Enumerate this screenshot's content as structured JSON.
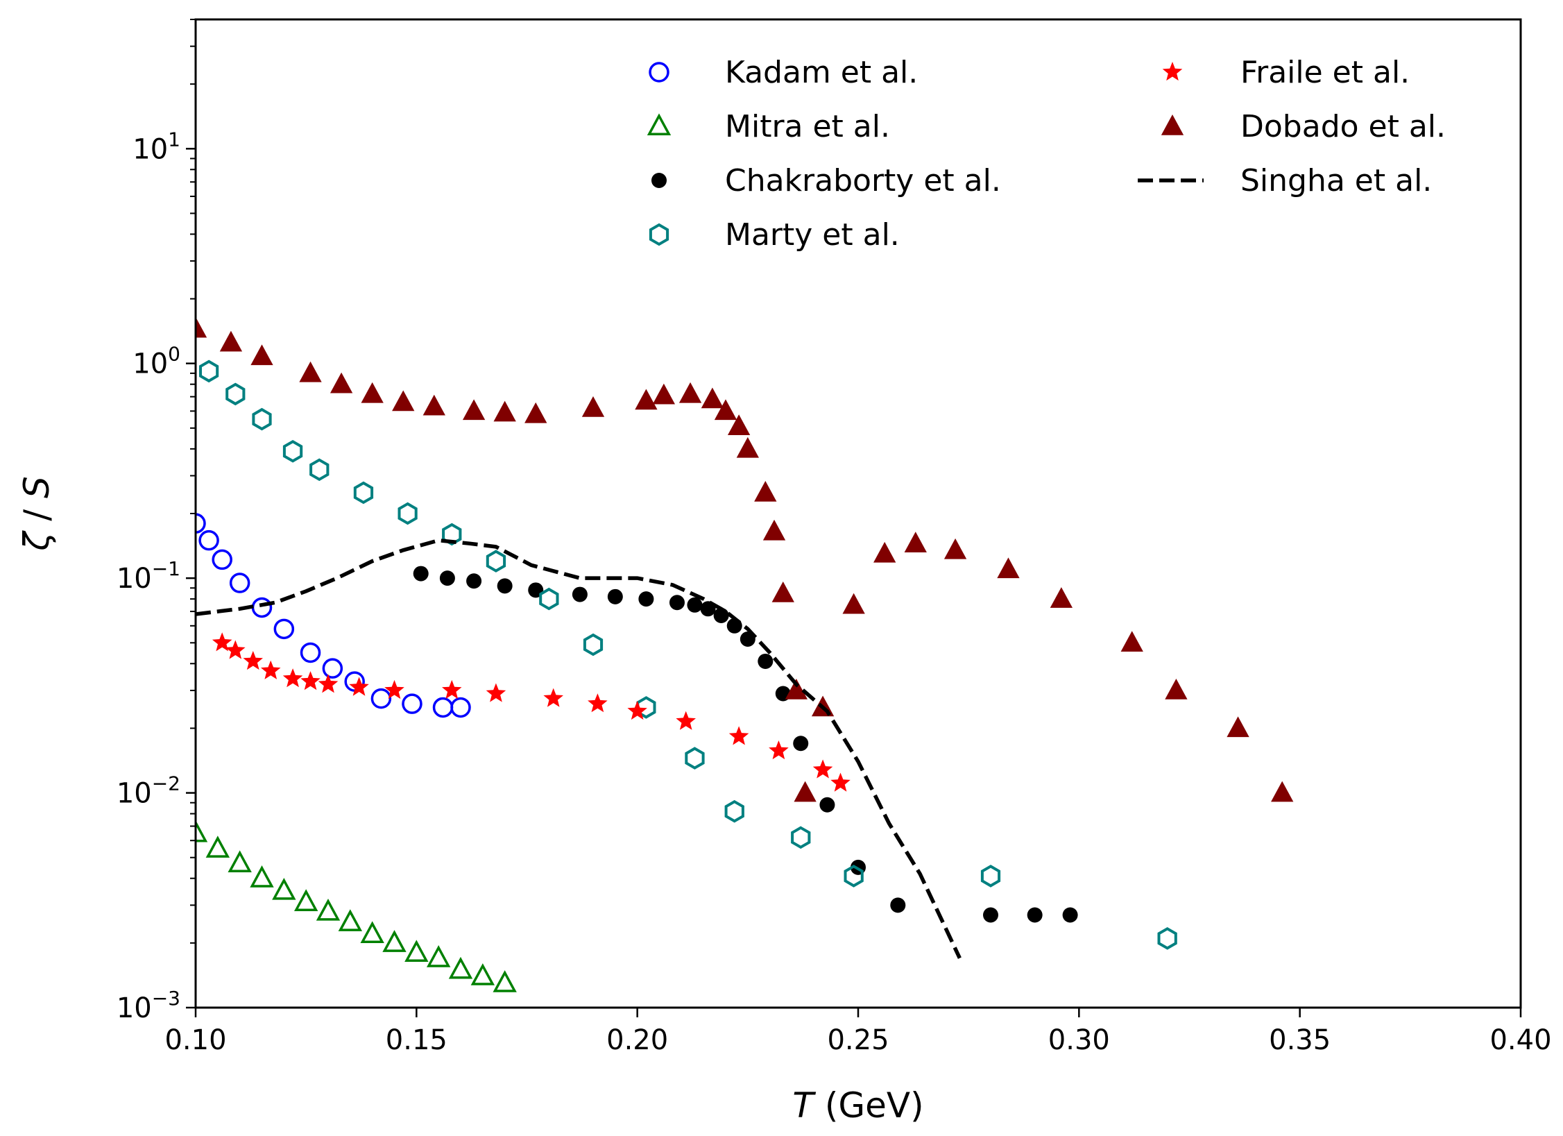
{
  "chart_data": {
    "type": "scatter",
    "xlabel": "T (GeV)",
    "ylabel": "ζ / S",
    "xlim": [
      0.1,
      0.4
    ],
    "ylim": [
      0.001,
      40
    ],
    "yscale": "log",
    "x_ticks": [
      {
        "value": 0.1,
        "label": "0.10"
      },
      {
        "value": 0.15,
        "label": "0.15"
      },
      {
        "value": 0.2,
        "label": "0.20"
      },
      {
        "value": 0.25,
        "label": "0.25"
      },
      {
        "value": 0.3,
        "label": "0.30"
      },
      {
        "value": 0.35,
        "label": "0.35"
      },
      {
        "value": 0.4,
        "label": "0.40"
      }
    ],
    "y_ticks": [
      {
        "value": 0.001,
        "base": "10",
        "exp": "−3"
      },
      {
        "value": 0.01,
        "base": "10",
        "exp": "−2"
      },
      {
        "value": 0.1,
        "base": "10",
        "exp": "−1"
      },
      {
        "value": 1,
        "base": "10",
        "exp": "0"
      },
      {
        "value": 10,
        "base": "10",
        "exp": "1"
      }
    ],
    "legend_position": "top-right",
    "series": [
      {
        "name": "Kadam et al.",
        "marker": "open-circle",
        "color": "#0000ff",
        "x": [
          0.1,
          0.103,
          0.106,
          0.11,
          0.115,
          0.12,
          0.126,
          0.131,
          0.136,
          0.142,
          0.149,
          0.156,
          0.16
        ],
        "y": [
          0.18,
          0.15,
          0.122,
          0.095,
          0.073,
          0.058,
          0.045,
          0.038,
          0.033,
          0.0275,
          0.026,
          0.025,
          0.025
        ]
      },
      {
        "name": "Mitra et al.",
        "marker": "open-triangle",
        "color": "#008000",
        "x": [
          0.1,
          0.105,
          0.11,
          0.115,
          0.12,
          0.125,
          0.13,
          0.135,
          0.14,
          0.145,
          0.15,
          0.155,
          0.16,
          0.165,
          0.17
        ],
        "y": [
          0.0065,
          0.0055,
          0.0047,
          0.004,
          0.0035,
          0.0031,
          0.0028,
          0.0025,
          0.0022,
          0.002,
          0.0018,
          0.0017,
          0.0015,
          0.0014,
          0.0013
        ]
      },
      {
        "name": "Chakraborty et al.",
        "marker": "filled-circle",
        "color": "#000000",
        "x": [
          0.151,
          0.157,
          0.163,
          0.17,
          0.177,
          0.187,
          0.195,
          0.202,
          0.209,
          0.213,
          0.216,
          0.219,
          0.222,
          0.225,
          0.229,
          0.233,
          0.237,
          0.243,
          0.25,
          0.259,
          0.28,
          0.29,
          0.298
        ],
        "y": [
          0.105,
          0.1,
          0.097,
          0.092,
          0.088,
          0.084,
          0.082,
          0.08,
          0.077,
          0.075,
          0.072,
          0.067,
          0.06,
          0.052,
          0.041,
          0.029,
          0.017,
          0.0088,
          0.0045,
          0.003,
          0.0027,
          0.0027,
          0.0027
        ]
      },
      {
        "name": "Marty et al.",
        "marker": "open-hexagon",
        "color": "#008080",
        "x": [
          0.103,
          0.109,
          0.115,
          0.122,
          0.128,
          0.138,
          0.148,
          0.158,
          0.168,
          0.18,
          0.19,
          0.202,
          0.213,
          0.222,
          0.237,
          0.249,
          0.28,
          0.32
        ],
        "y": [
          0.92,
          0.72,
          0.55,
          0.39,
          0.32,
          0.25,
          0.2,
          0.16,
          0.12,
          0.08,
          0.049,
          0.025,
          0.0145,
          0.0082,
          0.0062,
          0.0041,
          0.0041,
          0.0021
        ]
      },
      {
        "name": "Fraile et al.",
        "marker": "filled-star",
        "color": "#ff0000",
        "x": [
          0.106,
          0.109,
          0.113,
          0.117,
          0.122,
          0.126,
          0.13,
          0.137,
          0.145,
          0.158,
          0.168,
          0.181,
          0.191,
          0.2,
          0.211,
          0.223,
          0.232,
          0.242,
          0.246
        ],
        "y": [
          0.05,
          0.046,
          0.041,
          0.037,
          0.034,
          0.033,
          0.032,
          0.031,
          0.03,
          0.03,
          0.029,
          0.0275,
          0.026,
          0.024,
          0.0215,
          0.0183,
          0.0157,
          0.0128,
          0.0111
        ]
      },
      {
        "name": "Dobado et al.",
        "marker": "filled-triangle",
        "color": "#800000",
        "x": [
          0.1,
          0.108,
          0.115,
          0.126,
          0.133,
          0.14,
          0.147,
          0.154,
          0.163,
          0.17,
          0.177,
          0.19,
          0.202,
          0.206,
          0.212,
          0.217,
          0.22,
          0.223,
          0.225,
          0.229,
          0.231,
          0.233,
          0.236,
          0.238,
          0.242,
          0.249,
          0.256,
          0.263,
          0.272,
          0.284,
          0.296,
          0.312,
          0.322,
          0.336,
          0.346
        ],
        "y": [
          1.45,
          1.25,
          1.08,
          0.9,
          0.8,
          0.72,
          0.66,
          0.63,
          0.6,
          0.59,
          0.58,
          0.62,
          0.67,
          0.71,
          0.72,
          0.68,
          0.6,
          0.51,
          0.4,
          0.25,
          0.165,
          0.085,
          0.03,
          0.01,
          0.025,
          0.075,
          0.13,
          0.145,
          0.135,
          0.11,
          0.08,
          0.05,
          0.03,
          0.02,
          0.01
        ]
      },
      {
        "name": "Singha et al.",
        "marker": "dashed-line",
        "color": "#000000",
        "x": [
          0.1,
          0.11,
          0.118,
          0.125,
          0.132,
          0.14,
          0.147,
          0.155,
          0.162,
          0.168,
          0.176,
          0.187,
          0.2,
          0.208,
          0.215,
          0.22,
          0.225,
          0.23,
          0.236,
          0.243,
          0.25,
          0.257,
          0.264,
          0.27,
          0.273
        ],
        "y": [
          0.068,
          0.072,
          0.077,
          0.087,
          0.1,
          0.12,
          0.135,
          0.15,
          0.145,
          0.14,
          0.115,
          0.1,
          0.1,
          0.093,
          0.08,
          0.07,
          0.058,
          0.045,
          0.032,
          0.024,
          0.014,
          0.0072,
          0.0042,
          0.0023,
          0.0017
        ]
      }
    ]
  }
}
